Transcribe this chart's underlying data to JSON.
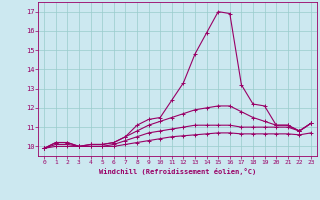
{
  "xlabel": "Windchill (Refroidissement éolien,°C)",
  "xlim": [
    -0.5,
    23.5
  ],
  "ylim": [
    9.5,
    17.5
  ],
  "yticks": [
    10,
    11,
    12,
    13,
    14,
    15,
    16,
    17
  ],
  "xticks": [
    0,
    1,
    2,
    3,
    4,
    5,
    6,
    7,
    8,
    9,
    10,
    11,
    12,
    13,
    14,
    15,
    16,
    17,
    18,
    19,
    20,
    21,
    22,
    23
  ],
  "background_color": "#cce8f0",
  "line_color": "#990066",
  "grid_color": "#99cccc",
  "lines": [
    [
      9.9,
      10.2,
      10.2,
      10.0,
      10.1,
      10.1,
      10.2,
      10.5,
      11.1,
      11.4,
      11.5,
      12.4,
      13.3,
      14.8,
      15.9,
      17.0,
      16.9,
      13.2,
      12.2,
      12.1,
      11.1,
      11.1,
      10.8,
      11.2
    ],
    [
      9.9,
      10.2,
      10.2,
      10.0,
      10.1,
      10.1,
      10.2,
      10.5,
      10.8,
      11.1,
      11.3,
      11.5,
      11.7,
      11.9,
      12.0,
      12.1,
      12.1,
      11.8,
      11.5,
      11.3,
      11.1,
      11.1,
      10.8,
      11.2
    ],
    [
      9.9,
      10.1,
      10.1,
      10.0,
      10.0,
      10.0,
      10.1,
      10.3,
      10.5,
      10.7,
      10.8,
      10.9,
      11.0,
      11.1,
      11.1,
      11.1,
      11.1,
      11.0,
      11.0,
      11.0,
      11.0,
      11.0,
      10.8,
      11.2
    ],
    [
      9.9,
      10.0,
      10.0,
      10.0,
      10.0,
      10.0,
      10.0,
      10.1,
      10.2,
      10.3,
      10.4,
      10.5,
      10.55,
      10.6,
      10.65,
      10.7,
      10.7,
      10.65,
      10.65,
      10.65,
      10.65,
      10.65,
      10.6,
      10.7
    ]
  ]
}
